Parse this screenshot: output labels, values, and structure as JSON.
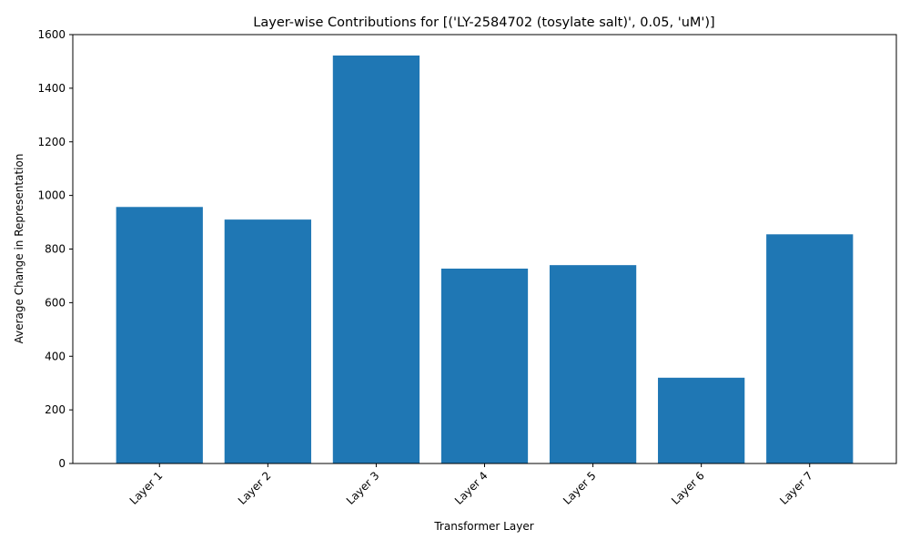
{
  "chart_data": {
    "type": "bar",
    "title": "Layer-wise Contributions for [('LY-2584702 (tosylate salt)', 0.05, 'uM')]",
    "xlabel": "Transformer Layer",
    "ylabel": "Average Change in Representation",
    "categories": [
      "Layer 1",
      "Layer 2",
      "Layer 3",
      "Layer 4",
      "Layer 5",
      "Layer 6",
      "Layer 7"
    ],
    "values": [
      957,
      910,
      1522,
      727,
      740,
      320,
      855
    ],
    "ylim": [
      0,
      1600
    ],
    "yticks": [
      0,
      200,
      400,
      600,
      800,
      1000,
      1200,
      1400,
      1600
    ],
    "bar_color": "#1f77b4",
    "grid": false,
    "legend": "none"
  }
}
